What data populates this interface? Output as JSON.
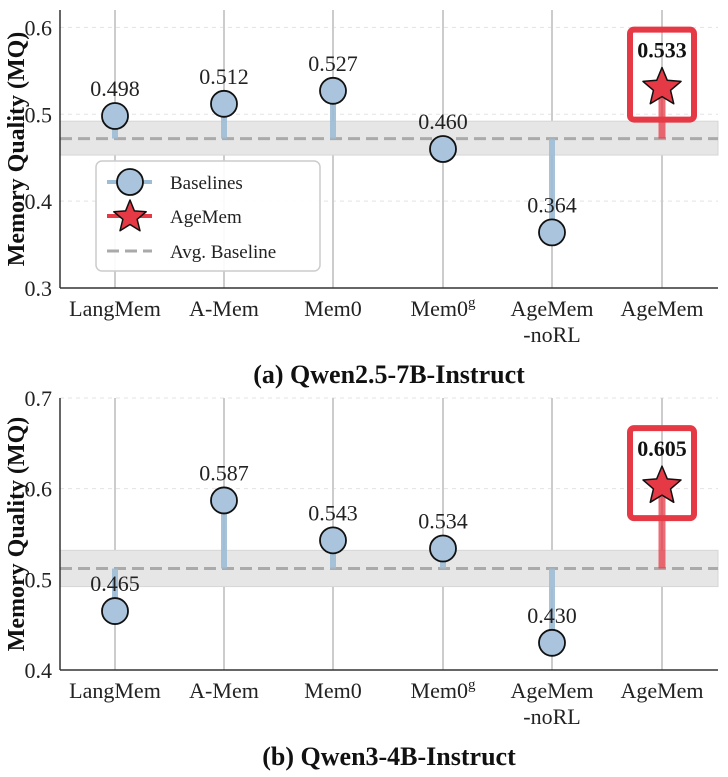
{
  "colors": {
    "baseline_marker": "#a9c4dc",
    "baseline_stem": "#9dbcd6",
    "agemem": "#e63946",
    "avg_line": "#aaaaaa",
    "band": "#e6e6e6",
    "grid": "#cccccc",
    "marker_edge": "#111111"
  },
  "legend": {
    "baselines": "Baselines",
    "agemem": "AgeMem",
    "avg": "Avg. Baseline"
  },
  "chart_data": [
    {
      "type": "scatter",
      "caption": "(a) Qwen2.5-7B-Instruct",
      "ylabel": "Memory Quality (MQ)",
      "ylim": [
        0.3,
        0.62
      ],
      "yticks": [
        "0.3",
        "0.4",
        "0.5",
        "0.6"
      ],
      "categories": [
        {
          "main": "LangMem",
          "sup": "",
          "second": ""
        },
        {
          "main": "A-Mem",
          "sup": "",
          "second": ""
        },
        {
          "main": "Mem0",
          "sup": "",
          "second": ""
        },
        {
          "main": "Mem0",
          "sup": "g",
          "second": ""
        },
        {
          "main": "AgeMem",
          "sup": "",
          "second": "-noRL"
        },
        {
          "main": "AgeMem",
          "sup": "",
          "second": ""
        }
      ],
      "values": [
        0.498,
        0.512,
        0.527,
        0.46,
        0.364,
        0.533
      ],
      "labels": [
        "0.498",
        "0.512",
        "0.527",
        "0.460",
        "0.364",
        "0.533"
      ],
      "series_kind": [
        "baseline",
        "baseline",
        "baseline",
        "baseline",
        "baseline",
        "agemem"
      ],
      "avg_baseline": 0.472,
      "band": [
        0.453,
        0.492
      ],
      "legend_position": "center-left",
      "grid": true
    },
    {
      "type": "scatter",
      "caption": "(b) Qwen3-4B-Instruct",
      "ylabel": "Memory Quality (MQ)",
      "ylim": [
        0.4,
        0.7
      ],
      "yticks": [
        "0.4",
        "0.5",
        "0.6",
        "0.7"
      ],
      "categories": [
        {
          "main": "LangMem",
          "sup": "",
          "second": ""
        },
        {
          "main": "A-Mem",
          "sup": "",
          "second": ""
        },
        {
          "main": "Mem0",
          "sup": "",
          "second": ""
        },
        {
          "main": "Mem0",
          "sup": "g",
          "second": ""
        },
        {
          "main": "AgeMem",
          "sup": "",
          "second": "-noRL"
        },
        {
          "main": "AgeMem",
          "sup": "",
          "second": ""
        }
      ],
      "values": [
        0.465,
        0.587,
        0.543,
        0.534,
        0.43,
        0.605
      ],
      "labels": [
        "0.465",
        "0.587",
        "0.543",
        "0.534",
        "0.430",
        "0.605"
      ],
      "series_kind": [
        "baseline",
        "baseline",
        "baseline",
        "baseline",
        "baseline",
        "agemem"
      ],
      "avg_baseline": 0.512,
      "band": [
        0.492,
        0.532
      ],
      "legend_position": "none",
      "grid": true
    }
  ]
}
